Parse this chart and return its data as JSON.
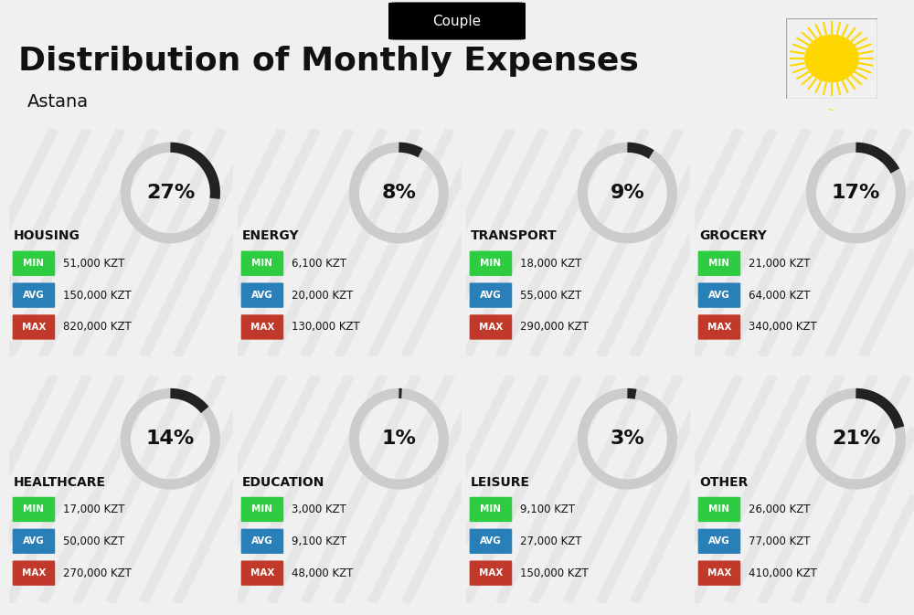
{
  "title": "Distribution of Monthly Expenses",
  "subtitle": "Astana",
  "badge": "Couple",
  "bg_color": "#f0f0f0",
  "categories": [
    {
      "name": "HOUSING",
      "pct": 27,
      "min": "51,000 KZT",
      "avg": "150,000 KZT",
      "max": "820,000 KZT",
      "row": 0,
      "col": 0
    },
    {
      "name": "ENERGY",
      "pct": 8,
      "min": "6,100 KZT",
      "avg": "20,000 KZT",
      "max": "130,000 KZT",
      "row": 0,
      "col": 1
    },
    {
      "name": "TRANSPORT",
      "pct": 9,
      "min": "18,000 KZT",
      "avg": "55,000 KZT",
      "max": "290,000 KZT",
      "row": 0,
      "col": 2
    },
    {
      "name": "GROCERY",
      "pct": 17,
      "min": "21,000 KZT",
      "avg": "64,000 KZT",
      "max": "340,000 KZT",
      "row": 0,
      "col": 3
    },
    {
      "name": "HEALTHCARE",
      "pct": 14,
      "min": "17,000 KZT",
      "avg": "50,000 KZT",
      "max": "270,000 KZT",
      "row": 1,
      "col": 0
    },
    {
      "name": "EDUCATION",
      "pct": 1,
      "min": "3,000 KZT",
      "avg": "9,100 KZT",
      "max": "48,000 KZT",
      "row": 1,
      "col": 1
    },
    {
      "name": "LEISURE",
      "pct": 3,
      "min": "9,100 KZT",
      "avg": "27,000 KZT",
      "max": "150,000 KZT",
      "row": 1,
      "col": 2
    },
    {
      "name": "OTHER",
      "pct": 21,
      "min": "26,000 KZT",
      "avg": "77,000 KZT",
      "max": "410,000 KZT",
      "row": 1,
      "col": 3
    }
  ],
  "color_min": "#2ecc40",
  "color_avg": "#2980b9",
  "color_max": "#c0392b",
  "label_color": "#ffffff",
  "text_color": "#111111",
  "arc_color": "#222222",
  "arc_bg_color": "#cccccc"
}
